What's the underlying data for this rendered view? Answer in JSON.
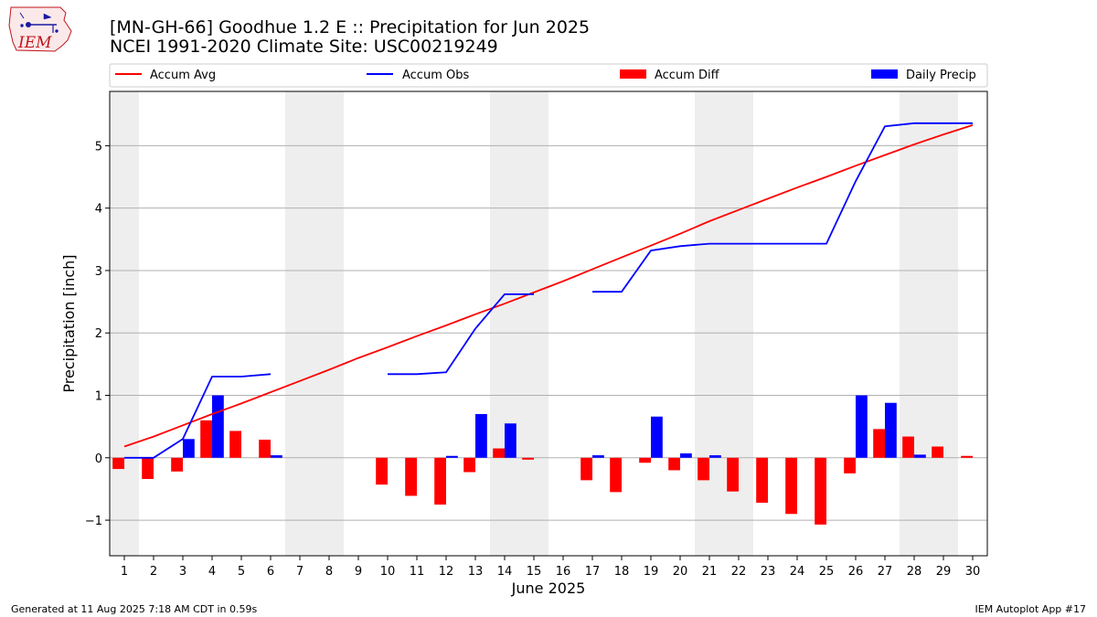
{
  "header": {
    "title_line1": "[MN-GH-66] Goodhue 1.2 E :: Precipitation for Jun 2025",
    "title_line2": "NCEI 1991-2020 Climate Site: USC00219249"
  },
  "logo": {
    "text": "IEM"
  },
  "footer": {
    "left": "Generated at 11 Aug 2025 7:18 AM CDT in 0.59s",
    "right": "IEM Autoplot App #17"
  },
  "chart_data": {
    "type": "bar",
    "xlabel": "June 2025",
    "ylabel": "Precipitation [inch]",
    "xlim": [
      0.5,
      30.5
    ],
    "ylim": [
      -1.57,
      5.87
    ],
    "yticks": [
      -1,
      0,
      1,
      2,
      3,
      4,
      5
    ],
    "ytick_labels": [
      "−1",
      "0",
      "1",
      "2",
      "3",
      "4",
      "5"
    ],
    "x": [
      1,
      2,
      3,
      4,
      5,
      6,
      7,
      8,
      9,
      10,
      11,
      12,
      13,
      14,
      15,
      16,
      17,
      18,
      19,
      20,
      21,
      22,
      23,
      24,
      25,
      26,
      27,
      28,
      29,
      30
    ],
    "grid": "horizontal",
    "legend_position": "top",
    "weekend_shading": [
      [
        0.5,
        1.5
      ],
      [
        6.5,
        8.5
      ],
      [
        13.5,
        15.5
      ],
      [
        20.5,
        22.5
      ],
      [
        27.5,
        29.5
      ]
    ],
    "shade_color": "#eeeeee",
    "series": [
      {
        "name": "Accum Avg",
        "kind": "line",
        "color": "#ff0000",
        "values": [
          0.18,
          0.34,
          0.52,
          0.7,
          0.87,
          1.05,
          1.23,
          1.41,
          1.6,
          1.77,
          1.95,
          2.12,
          2.3,
          2.47,
          2.65,
          2.83,
          3.02,
          3.21,
          3.4,
          3.59,
          3.79,
          3.97,
          4.15,
          4.33,
          4.5,
          4.68,
          4.85,
          5.02,
          5.18,
          5.33
        ]
      },
      {
        "name": "Accum Obs",
        "kind": "line",
        "color": "#0000ff",
        "values": [
          0.0,
          0.0,
          0.3,
          1.3,
          1.3,
          1.34,
          null,
          null,
          null,
          1.34,
          1.34,
          1.37,
          2.07,
          2.62,
          2.62,
          null,
          2.66,
          2.66,
          3.32,
          3.39,
          3.43,
          3.43,
          3.43,
          3.43,
          3.43,
          4.43,
          5.31,
          5.36,
          5.36,
          5.36
        ]
      },
      {
        "name": "Accum Diff",
        "kind": "bar",
        "color": "#ff0000",
        "values": [
          -0.18,
          -0.34,
          -0.22,
          0.6,
          0.43,
          0.29,
          null,
          null,
          null,
          -0.43,
          -0.61,
          -0.75,
          -0.23,
          0.15,
          -0.03,
          null,
          -0.36,
          -0.55,
          -0.08,
          -0.2,
          -0.36,
          -0.54,
          -0.72,
          -0.9,
          -1.07,
          -0.25,
          0.46,
          0.34,
          0.18,
          0.03
        ]
      },
      {
        "name": "Daily Precip",
        "kind": "bar",
        "color": "#0000ff",
        "values": [
          0.0,
          0.0,
          0.3,
          1.0,
          0.0,
          0.04,
          null,
          null,
          null,
          0.0,
          0.0,
          0.03,
          0.7,
          0.55,
          0.0,
          null,
          0.04,
          0.0,
          0.66,
          0.07,
          0.04,
          0.0,
          0.0,
          0.0,
          0.0,
          1.0,
          0.88,
          0.05,
          0.0,
          0.0
        ]
      }
    ]
  }
}
